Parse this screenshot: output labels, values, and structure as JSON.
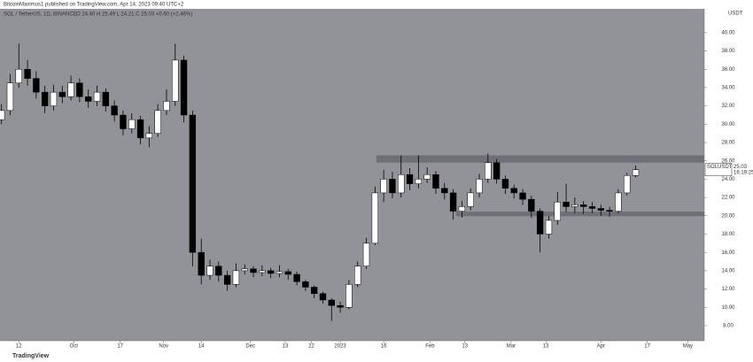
{
  "chart_data": {
    "type": "candlestick",
    "attribution": "BitcoinMaximus1 published on TradingView.com, Apr 14, 2023 09:40 UTC+2",
    "title": "SOL / TetherUS, 1D, BINANCE",
    "ohlc_text": "O 24.40 H 25.49 L 24.21 C 25.03 +0.60 (+2.46%)",
    "y_label": "USDT",
    "footer": "TradingView",
    "up_color": "#ffffff",
    "down_color": "#000000",
    "background": "#929399",
    "zone_color": "#5f6068",
    "xlim": [
      -6.5,
      236.7
    ],
    "xticks": [
      {
        "value": 0,
        "label": "12"
      },
      {
        "value": 19,
        "label": "Oct"
      },
      {
        "value": 35,
        "label": "17"
      },
      {
        "value": 50,
        "label": "Nov"
      },
      {
        "value": 63,
        "label": "14"
      },
      {
        "value": 80,
        "label": "Dec"
      },
      {
        "value": 92,
        "label": "13"
      },
      {
        "value": 101,
        "label": "22"
      },
      {
        "value": 111,
        "label": "2023"
      },
      {
        "value": 126,
        "label": "16"
      },
      {
        "value": 142,
        "label": "Feb"
      },
      {
        "value": 154,
        "label": "13"
      },
      {
        "value": 170,
        "label": "Mar"
      },
      {
        "value": 182,
        "label": "13"
      },
      {
        "value": 201,
        "label": "Apr"
      },
      {
        "value": 217,
        "label": "17"
      },
      {
        "value": 231,
        "label": "May"
      }
    ],
    "ylim": [
      6.35,
      42.6
    ],
    "yticks": [
      {
        "value": 8,
        "label": "8.00"
      },
      {
        "value": 10,
        "label": "10.00"
      },
      {
        "value": 12,
        "label": "12.00"
      },
      {
        "value": 14,
        "label": "14.00"
      },
      {
        "value": 16,
        "label": "16.00"
      },
      {
        "value": 18,
        "label": "18.00"
      },
      {
        "value": 20,
        "label": "20.00"
      },
      {
        "value": 22,
        "label": "22.00"
      },
      {
        "value": 24,
        "label": "24.00"
      },
      {
        "value": 26,
        "label": "26.00"
      },
      {
        "value": 28,
        "label": "28.00"
      },
      {
        "value": 30,
        "label": "30.00"
      },
      {
        "value": 32,
        "label": "32.00"
      },
      {
        "value": 34,
        "label": "34.00"
      },
      {
        "value": 36,
        "label": "36.00"
      },
      {
        "value": 38,
        "label": "38.00"
      },
      {
        "value": 40,
        "label": "40.00"
      }
    ],
    "x": [
      -6,
      -3,
      0,
      3,
      6,
      9,
      12,
      15,
      18,
      21,
      24,
      27,
      30,
      33,
      36,
      39,
      42,
      45,
      48,
      51,
      54,
      57,
      60,
      63,
      66,
      69,
      72,
      75,
      78,
      81,
      84,
      87,
      90,
      93,
      96,
      99,
      102,
      105,
      108,
      111,
      114,
      117,
      120,
      123,
      126,
      129,
      132,
      135,
      138,
      141,
      144,
      147,
      150,
      153,
      156,
      159,
      162,
      165,
      168,
      171,
      174,
      177,
      180,
      183,
      186,
      189,
      192,
      195,
      198,
      201,
      204,
      207,
      210,
      213
    ],
    "open": [
      30.5,
      31.5,
      34.5,
      36.0,
      35.0,
      33.5,
      32.0,
      33.5,
      33.0,
      34.5,
      33.0,
      32.5,
      33.5,
      32.0,
      31.0,
      29.5,
      30.5,
      28.5,
      29.0,
      31.5,
      32.5,
      37.0,
      31.0,
      16.0,
      13.5,
      14.5,
      13.5,
      12.5,
      14.0,
      14.2,
      13.8,
      14.0,
      13.7,
      13.9,
      13.6,
      12.8,
      12.2,
      11.5,
      10.8,
      10.2,
      10.0,
      12.5,
      14.5,
      17.0,
      22.5,
      24.0,
      22.5,
      24.5,
      23.5,
      24.0,
      24.5,
      23.0,
      22.5,
      20.5,
      21.0,
      22.5,
      24.0,
      25.8,
      24.0,
      23.0,
      22.5,
      21.8,
      20.5,
      18.0,
      19.5,
      21.5,
      21.0,
      21.2,
      21.0,
      20.8,
      20.6,
      20.5,
      22.5,
      24.4
    ],
    "high": [
      32.2,
      35.5,
      38.8,
      37.0,
      35.8,
      34.2,
      34.3,
      34.2,
      35.3,
      35.0,
      33.8,
      34.2,
      33.9,
      32.6,
      31.5,
      31.2,
      30.9,
      29.8,
      32.2,
      33.8,
      38.8,
      37.5,
      31.5,
      17.5,
      15.2,
      15.0,
      14.0,
      14.8,
      14.7,
      14.5,
      14.6,
      14.3,
      14.6,
      14.2,
      13.9,
      13.0,
      12.4,
      11.7,
      11.0,
      10.6,
      13.0,
      15.0,
      17.6,
      23.2,
      25.0,
      24.8,
      26.6,
      25.2,
      26.6,
      25.3,
      24.9,
      23.6,
      22.9,
      21.6,
      23.0,
      24.6,
      26.8,
      26.2,
      24.4,
      23.4,
      22.9,
      22.2,
      20.8,
      20.0,
      22.6,
      23.5,
      22.0,
      21.6,
      21.5,
      21.2,
      21.0,
      22.9,
      24.7,
      25.49
    ],
    "low": [
      30.0,
      31.0,
      34.0,
      34.2,
      32.8,
      31.2,
      31.5,
      32.3,
      32.6,
      32.4,
      31.8,
      32.0,
      31.4,
      30.3,
      28.8,
      29.0,
      27.8,
      27.5,
      28.6,
      31.0,
      32.0,
      30.2,
      14.5,
      12.5,
      13.0,
      12.8,
      11.8,
      12.2,
      13.6,
      13.3,
      13.4,
      13.2,
      13.3,
      13.0,
      12.4,
      11.8,
      11.0,
      10.4,
      8.5,
      9.4,
      9.8,
      12.2,
      14.2,
      16.8,
      21.5,
      21.9,
      22.0,
      22.8,
      23.0,
      23.6,
      22.4,
      21.8,
      19.6,
      19.8,
      20.6,
      22.0,
      23.6,
      23.5,
      22.4,
      21.9,
      21.2,
      19.8,
      16.0,
      17.5,
      19.0,
      20.4,
      20.3,
      20.2,
      20.3,
      20.0,
      19.9,
      20.3,
      22.2,
      24.21
    ],
    "close": [
      31.5,
      34.5,
      36.0,
      35.0,
      33.5,
      32.0,
      33.5,
      33.0,
      34.5,
      33.0,
      32.5,
      33.5,
      32.0,
      31.0,
      29.5,
      30.5,
      28.5,
      29.0,
      31.5,
      32.5,
      37.0,
      31.0,
      16.0,
      13.5,
      14.5,
      13.5,
      12.5,
      14.0,
      14.2,
      13.8,
      14.0,
      13.7,
      13.9,
      13.6,
      12.8,
      12.2,
      11.5,
      10.8,
      10.2,
      10.0,
      12.5,
      14.5,
      17.0,
      22.5,
      24.0,
      22.5,
      24.5,
      23.5,
      24.0,
      24.5,
      23.0,
      22.5,
      20.5,
      21.0,
      22.5,
      24.0,
      25.8,
      24.0,
      23.0,
      22.5,
      21.8,
      20.5,
      18.0,
      19.5,
      21.5,
      21.0,
      21.2,
      21.0,
      20.8,
      20.6,
      20.5,
      22.5,
      24.4,
      25.03
    ],
    "zones": [
      {
        "low": 25.8,
        "high": 26.6,
        "start": 123.5
      },
      {
        "low": 19.95,
        "high": 20.45,
        "start": 151
      }
    ],
    "last_label": {
      "symbol": "SOLUSDT",
      "price": 25.03,
      "countdown": "16:19:25"
    }
  }
}
